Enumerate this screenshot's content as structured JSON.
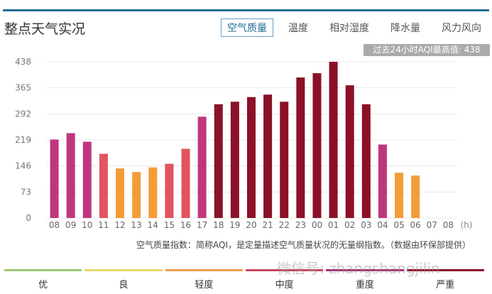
{
  "header": {
    "title": "整点天气实况",
    "tabs": [
      {
        "label": "空气质量",
        "active": true
      },
      {
        "label": "温度"
      },
      {
        "label": "相对湿度"
      },
      {
        "label": "降水量"
      },
      {
        "label": "风力风向"
      }
    ]
  },
  "badge": "过去24小时AQI最高值: 438",
  "chart_data": {
    "type": "bar",
    "xlabel": "(h)",
    "ylabel": "",
    "ylim": [
      0,
      438
    ],
    "yticks": [
      0,
      73,
      146,
      219,
      292,
      365,
      438
    ],
    "categories": [
      "08",
      "09",
      "10",
      "11",
      "12",
      "13",
      "14",
      "15",
      "16",
      "17",
      "18",
      "19",
      "20",
      "21",
      "22",
      "23",
      "00",
      "01",
      "02",
      "03",
      "04",
      "05",
      "06",
      "07",
      "08"
    ],
    "values": [
      220,
      238,
      214,
      180,
      139,
      129,
      142,
      152,
      194,
      284,
      319,
      326,
      339,
      346,
      326,
      394,
      406,
      438,
      372,
      319,
      206,
      127,
      119,
      null,
      null
    ],
    "grid": true
  },
  "colors": {
    "light": "#f29d38",
    "moderate": "#e05560",
    "heavy": "#c0367e",
    "severe": "#8b1028",
    "good": "#9cc87a",
    "fair": "#ecd86a"
  },
  "note": "空气质量指数：简称AQI，是定量描述空气质量状况的无量纲指数。（数据由环保部提供）",
  "legend": [
    {
      "label": "优",
      "color": "#9cc87a"
    },
    {
      "label": "良",
      "color": "#ecd86a"
    },
    {
      "label": "轻度",
      "color": "#eca04a"
    },
    {
      "label": "中度",
      "color": "#c8465e"
    },
    {
      "label": "重度",
      "color": "#a8306e"
    },
    {
      "label": "严重",
      "color": "#8b1028"
    }
  ],
  "watermark": "微信号: zhangshangjilin"
}
